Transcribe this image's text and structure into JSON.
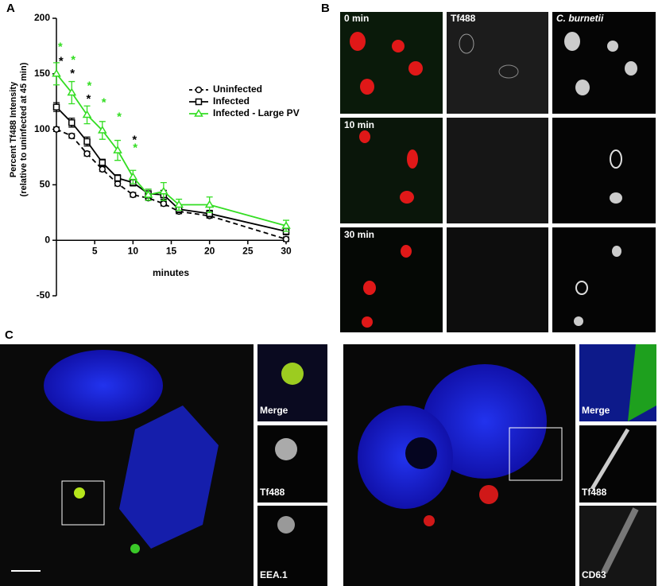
{
  "panels": [
    {
      "label": "A"
    },
    {
      "label": "B"
    },
    {
      "label": "C"
    }
  ],
  "chart_data": {
    "type": "line",
    "y_label": [
      "Percent Tf488 Intensity",
      "(relative to uninfected at 45 min)"
    ],
    "x_label": "minutes",
    "x": [
      0,
      2,
      4,
      6,
      8,
      10,
      12,
      14,
      16,
      20,
      30
    ],
    "xlim": [
      0,
      30
    ],
    "xticks": [
      5,
      10,
      15,
      20,
      25,
      30
    ],
    "ylim": [
      -50,
      200
    ],
    "yticks": [
      -50,
      0,
      50,
      100,
      150,
      200
    ],
    "legend": "upper right",
    "series": [
      {
        "name": "Uninfected",
        "color": "#000000",
        "marker": "circle",
        "dash": true,
        "values": [
          100,
          94,
          78,
          64,
          51,
          41,
          38,
          33,
          26,
          22,
          1
        ],
        "errors": [
          2,
          2,
          2,
          2,
          2,
          2,
          2,
          2,
          2,
          2,
          2
        ]
      },
      {
        "name": "Infected",
        "color": "#000000",
        "marker": "square",
        "dash": false,
        "values": [
          120,
          106,
          89,
          70,
          56,
          52,
          42,
          41,
          28,
          24,
          8
        ],
        "errors": [
          4,
          4,
          4,
          3,
          3,
          3,
          4,
          4,
          3,
          3,
          3
        ]
      },
      {
        "name": "Infected - Large PV",
        "color": "#33dd22",
        "marker": "triangle",
        "dash": false,
        "values": [
          150,
          133,
          113,
          99,
          81,
          57,
          41,
          44,
          32,
          32,
          13
        ],
        "errors": [
          10,
          10,
          8,
          8,
          9,
          6,
          5,
          8,
          5,
          7,
          5
        ]
      }
    ],
    "annotations": [
      {
        "text": "*",
        "x": 0.5,
        "y": 176,
        "color": "#33dd22"
      },
      {
        "text": "*",
        "x": 2.2,
        "y": 164,
        "color": "#33dd22"
      },
      {
        "text": "*",
        "x": 4.3,
        "y": 141,
        "color": "#33dd22"
      },
      {
        "text": "*",
        "x": 6.2,
        "y": 126,
        "color": "#33dd22"
      },
      {
        "text": "*",
        "x": 8.2,
        "y": 113,
        "color": "#33dd22"
      },
      {
        "text": "*",
        "x": 10.3,
        "y": 85,
        "color": "#33dd22"
      },
      {
        "text": "*",
        "x": 0.6,
        "y": 163,
        "color": "#000000"
      },
      {
        "text": "*",
        "x": 2.1,
        "y": 152,
        "color": "#000000"
      },
      {
        "text": "*",
        "x": 4.2,
        "y": 129,
        "color": "#000000"
      },
      {
        "text": "*",
        "x": 10.2,
        "y": 92,
        "color": "#000000"
      }
    ]
  },
  "panel_b": {
    "rows": [
      "0 min",
      "10 min",
      "30 min"
    ],
    "columns": [
      "Tf488",
      "C. burnetii"
    ]
  },
  "panel_c": {
    "left_insets": [
      "Merge",
      "Tf488",
      "EEA.1"
    ],
    "right_insets": [
      "Merge",
      "Tf488",
      "CD63"
    ]
  }
}
